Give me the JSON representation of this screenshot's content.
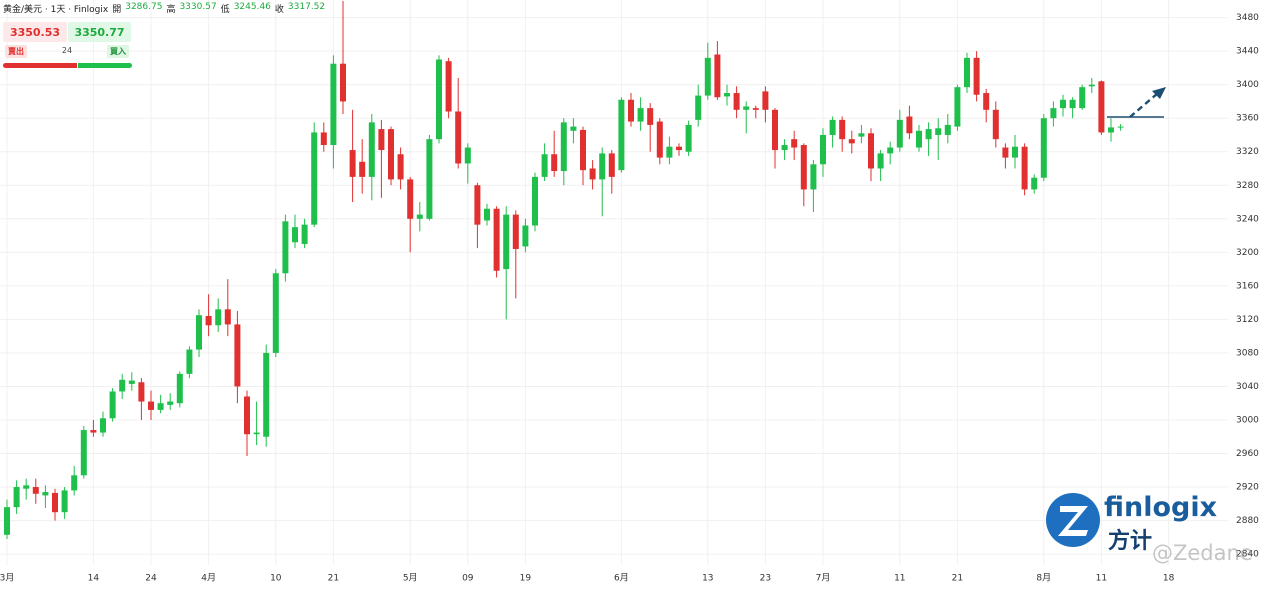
{
  "header": {
    "symbol": "黄金/美元 · 1天 · Finlogix",
    "open_label": "開",
    "open": 3286.75,
    "high_label": "高",
    "high": 3330.57,
    "low_label": "低",
    "low": 3245.46,
    "close_label": "收",
    "close": 3317.52
  },
  "trade": {
    "sell_price": 3350.53,
    "sell_label": "賣出",
    "spread": 24,
    "buy_price": 3350.77,
    "buy_label": "買入"
  },
  "watermark": {
    "brand": "finlogix",
    "brand_cn": "方计",
    "author": "@Zedane"
  },
  "chart_data": {
    "type": "candlestick",
    "up_color": "#1fbf4c",
    "down_color": "#e0302f",
    "grid": true,
    "ylim": [
      2827,
      3501
    ],
    "yticks": [
      2840,
      2880,
      2920,
      2960,
      3000,
      3040,
      3080,
      3120,
      3160,
      3200,
      3240,
      3280,
      3320,
      3360,
      3400,
      3440,
      3480
    ],
    "categories": [
      "3月",
      null,
      null,
      null,
      null,
      null,
      null,
      null,
      null,
      "14",
      null,
      null,
      null,
      null,
      null,
      "24",
      null,
      null,
      null,
      null,
      null,
      "4月",
      null,
      null,
      null,
      null,
      null,
      null,
      "10",
      null,
      null,
      null,
      null,
      null,
      "21",
      null,
      null,
      null,
      null,
      null,
      null,
      null,
      "5月",
      null,
      null,
      null,
      null,
      null,
      "09",
      null,
      null,
      null,
      null,
      null,
      "19",
      null,
      null,
      null,
      null,
      null,
      null,
      null,
      null,
      null,
      "6月",
      null,
      null,
      null,
      null,
      null,
      null,
      null,
      null,
      "13",
      null,
      null,
      null,
      null,
      null,
      "23",
      null,
      null,
      null,
      null,
      null,
      "7月",
      null,
      null,
      null,
      null,
      null,
      null,
      null,
      "11",
      null,
      null,
      null,
      null,
      null,
      "21",
      null,
      null,
      null,
      null,
      null,
      null,
      null,
      null,
      "8月",
      null,
      null,
      null,
      null,
      null,
      "11",
      null,
      null,
      null,
      null,
      null,
      null,
      "18"
    ],
    "open": [
      2863,
      2896,
      2918,
      2920,
      2910,
      2913,
      2890,
      2916,
      2934,
      2988,
      2985,
      3002,
      3034,
      3043,
      3045,
      3022,
      3012,
      3018,
      3020,
      3055,
      3084,
      3124,
      3113,
      3132,
      3114,
      3028,
      2983,
      2980,
      3080,
      3175,
      3212,
      3210,
      3233,
      3343,
      3328,
      3425,
      3322,
      3308,
      3290,
      3347,
      3347,
      3317,
      3287,
      3240,
      3240,
      3335,
      3428,
      3368,
      3306,
      3280,
      3238,
      3252,
      3180,
      3245,
      3207,
      3232,
      3290,
      3317,
      3297,
      3345,
      3346,
      3300,
      3287,
      3318,
      3298,
      3382,
      3356,
      3372,
      3356,
      3313,
      3326,
      3320,
      3358,
      3387,
      3436,
      3386,
      3390,
      3370,
      3372,
      3392,
      3370,
      3322,
      3335,
      3328,
      3275,
      3305,
      3340,
      3358,
      3335,
      3338,
      3342,
      3300,
      3318,
      3325,
      3362,
      3325,
      3335,
      3340,
      3340,
      3350,
      3397,
      3432,
      3390,
      3370,
      3325,
      3313,
      3326,
      3275,
      3289,
      3360,
      3372,
      3372,
      3372,
      3398,
      3404,
      3343,
      3349,
      null,
      null,
      null,
      null,
      null
    ],
    "high": [
      2905,
      2928,
      2930,
      2930,
      2922,
      2918,
      2920,
      2945,
      2993,
      3000,
      3010,
      3038,
      3055,
      3057,
      3050,
      3035,
      3030,
      3032,
      3058,
      3088,
      3132,
      3150,
      3145,
      3168,
      3130,
      3035,
      3022,
      3090,
      3180,
      3245,
      3245,
      3240,
      3355,
      3355,
      3435,
      3500,
      3370,
      3335,
      3365,
      3358,
      3350,
      3325,
      3290,
      3260,
      3340,
      3435,
      3432,
      3408,
      3330,
      3283,
      3258,
      3255,
      3255,
      3250,
      3240,
      3295,
      3330,
      3345,
      3360,
      3360,
      3350,
      3310,
      3325,
      3322,
      3385,
      3390,
      3385,
      3378,
      3360,
      3338,
      3330,
      3357,
      3400,
      3450,
      3452,
      3400,
      3398,
      3380,
      3375,
      3398,
      3372,
      3335,
      3345,
      3330,
      3310,
      3348,
      3362,
      3362,
      3345,
      3352,
      3348,
      3322,
      3332,
      3370,
      3375,
      3352,
      3355,
      3360,
      3365,
      3400,
      3438,
      3440,
      3395,
      3380,
      3330,
      3340,
      3330,
      3293,
      3365,
      3380,
      3388,
      3385,
      3400,
      3408,
      3405,
      3360,
      3353,
      null,
      null,
      null,
      null,
      null
    ],
    "low": [
      2858,
      2888,
      2905,
      2900,
      2895,
      2880,
      2882,
      2910,
      2930,
      2980,
      2980,
      2998,
      3025,
      3035,
      3000,
      3000,
      3008,
      3012,
      3015,
      3050,
      3075,
      3100,
      3105,
      3100,
      3020,
      2957,
      2970,
      2968,
      3075,
      3165,
      3205,
      3205,
      3230,
      3320,
      3300,
      3365,
      3260,
      3270,
      3262,
      3265,
      3280,
      3275,
      3200,
      3225,
      3238,
      3330,
      3360,
      3300,
      3282,
      3205,
      3232,
      3170,
      3120,
      3145,
      3200,
      3225,
      3285,
      3290,
      3280,
      3330,
      3280,
      3275,
      3243,
      3270,
      3295,
      3350,
      3345,
      3320,
      3305,
      3305,
      3315,
      3315,
      3350,
      3382,
      3382,
      3375,
      3360,
      3342,
      3360,
      3355,
      3300,
      3310,
      3310,
      3255,
      3248,
      3290,
      3325,
      3320,
      3318,
      3330,
      3285,
      3285,
      3305,
      3320,
      3335,
      3320,
      3315,
      3310,
      3330,
      3345,
      3390,
      3380,
      3355,
      3325,
      3300,
      3300,
      3268,
      3270,
      3285,
      3350,
      3362,
      3360,
      3370,
      3390,
      3340,
      3332,
      3345,
      null,
      null,
      null,
      null,
      null
    ],
    "close": [
      2896,
      2920,
      2922,
      2912,
      2914,
      2890,
      2916,
      2934,
      2988,
      2985,
      3002,
      3034,
      3048,
      3047,
      3022,
      3012,
      3020,
      3022,
      3055,
      3084,
      3125,
      3113,
      3132,
      3114,
      3040,
      2983,
      2985,
      3080,
      3175,
      3237,
      3230,
      3233,
      3343,
      3328,
      3425,
      3380,
      3290,
      3290,
      3355,
      3322,
      3287,
      3287,
      3240,
      3245,
      3335,
      3430,
      3368,
      3306,
      3325,
      3233,
      3252,
      3178,
      3245,
      3204,
      3232,
      3290,
      3317,
      3297,
      3355,
      3350,
      3298,
      3287,
      3318,
      3290,
      3382,
      3356,
      3372,
      3352,
      3313,
      3326,
      3322,
      3352,
      3387,
      3432,
      3385,
      3390,
      3370,
      3374,
      3370,
      3370,
      3322,
      3328,
      3325,
      3275,
      3305,
      3340,
      3358,
      3335,
      3330,
      3342,
      3300,
      3318,
      3325,
      3358,
      3342,
      3345,
      3347,
      3348,
      3352,
      3397,
      3432,
      3388,
      3370,
      3335,
      3313,
      3326,
      3275,
      3289,
      3360,
      3372,
      3382,
      3382,
      3397,
      3400,
      3343,
      3349,
      3350,
      null,
      null,
      null,
      null,
      null
    ]
  }
}
